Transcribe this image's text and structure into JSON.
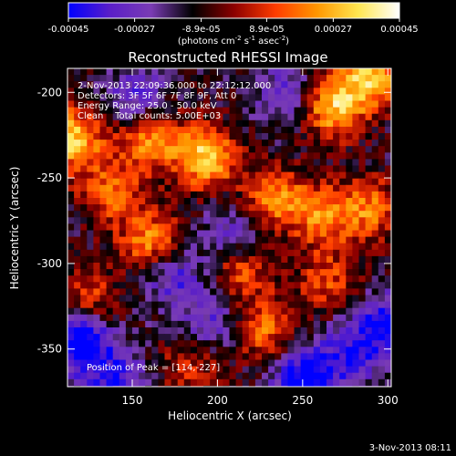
{
  "colorbar": {
    "ticks": [
      "-0.00045",
      "-0.00027",
      "-8.9e-05",
      "8.9e-05",
      "0.00027",
      "0.00045"
    ],
    "unit_base": "(photons cm",
    "unit_exp1": "-2",
    "unit_mid": " s",
    "unit_exp2": "-1",
    "unit_mid2": " asec",
    "unit_exp3": "-2",
    "unit_end": ")",
    "range": [
      -0.00045,
      0.00045
    ],
    "colormap": [
      "#0000ff",
      "#5a1ec8",
      "#7a3cb4",
      "#000000",
      "#8c0000",
      "#ff3c00",
      "#ff9600",
      "#ffe650",
      "#ffffff"
    ]
  },
  "chart_data": {
    "type": "heatmap",
    "title": "Reconstructed RHESSI Image",
    "xlabel": "Heliocentric X (arcsec)",
    "ylabel": "Heliocentric Y (arcsec)",
    "xlim": [
      112,
      302
    ],
    "ylim": [
      -372,
      -186
    ],
    "x_ticks": [
      "150",
      "200",
      "250",
      "300"
    ],
    "x_tick_values": [
      150,
      200,
      250,
      300
    ],
    "y_ticks": [
      "-200",
      "-250",
      "-300",
      "-350"
    ],
    "y_tick_values": [
      -200,
      -250,
      -300,
      -350
    ],
    "annotations": {
      "time": "2-Nov-2013 22:09:36.000 to 22:12:12.000",
      "detectors": "Detectors: 3F 5F 6F 7F 8F 9F, Att 0",
      "energy": "Energy Range: 25.0 - 50.0 keV",
      "clean": "Clean    Total counts: 5.00E+03",
      "peak": "Position of Peak = [114,-227]"
    },
    "peak": [
      114,
      -227
    ],
    "hot_regions": [
      {
        "x": 114,
        "y": -227,
        "value": 0.00045
      },
      {
        "x": 193,
        "y": -238,
        "value": 0.00044
      },
      {
        "x": 160,
        "y": -226,
        "value": 0.00035
      },
      {
        "x": 268,
        "y": -208,
        "value": 0.00042
      },
      {
        "x": 291,
        "y": -190,
        "value": 0.0004
      },
      {
        "x": 162,
        "y": -288,
        "value": 0.00036
      },
      {
        "x": 138,
        "y": -258,
        "value": 0.00028
      },
      {
        "x": 233,
        "y": -262,
        "value": 0.00033
      },
      {
        "x": 262,
        "y": -272,
        "value": 0.0003
      },
      {
        "x": 290,
        "y": -268,
        "value": 0.00028
      },
      {
        "x": 214,
        "y": -303,
        "value": 0.00026
      },
      {
        "x": 124,
        "y": -322,
        "value": 0.00025
      },
      {
        "x": 228,
        "y": -338,
        "value": 0.00028
      },
      {
        "x": 265,
        "y": -310,
        "value": 0.00022
      },
      {
        "x": 184,
        "y": -360,
        "value": 0.0002
      }
    ],
    "cold_regions": [
      {
        "x": 120,
        "y": -345,
        "value": -0.00045
      },
      {
        "x": 252,
        "y": -368,
        "value": -0.00042
      },
      {
        "x": 210,
        "y": -283,
        "value": -0.00022
      },
      {
        "x": 173,
        "y": -305,
        "value": -0.00026
      },
      {
        "x": 152,
        "y": -205,
        "value": -0.00024
      },
      {
        "x": 240,
        "y": -200,
        "value": -0.0002
      },
      {
        "x": 300,
        "y": -335,
        "value": -0.0003
      },
      {
        "x": 280,
        "y": -352,
        "value": -0.00025
      },
      {
        "x": 195,
        "y": -335,
        "value": -0.0002
      },
      {
        "x": 140,
        "y": -370,
        "value": -0.00028
      }
    ]
  },
  "footer": {
    "timestamp": "3-Nov-2013 08:11"
  }
}
